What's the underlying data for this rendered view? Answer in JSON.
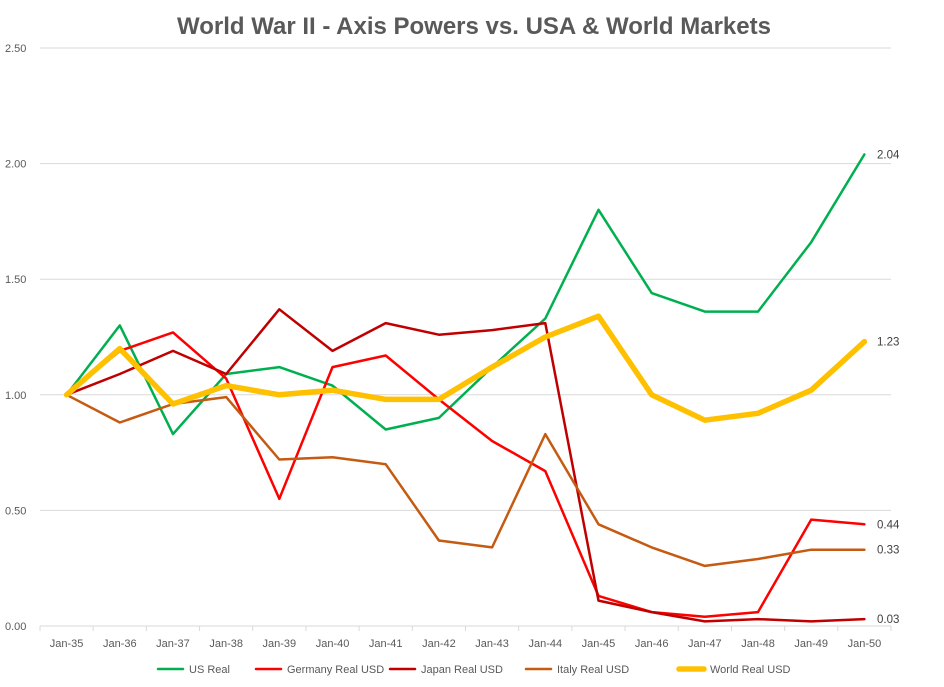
{
  "chart_data": {
    "type": "line",
    "title": "World War II - Axis Powers vs. USA & World Markets",
    "xlabel": "",
    "ylabel": "",
    "ylim": [
      0,
      2.5
    ],
    "yticks": [
      "0.00",
      "0.50",
      "1.00",
      "1.50",
      "2.00",
      "2.50"
    ],
    "grid": true,
    "legend_position": "bottom",
    "categories": [
      "Jan-35",
      "Jan-36",
      "Jan-37",
      "Jan-38",
      "Jan-39",
      "Jan-40",
      "Jan-41",
      "Jan-42",
      "Jan-43",
      "Jan-44",
      "Jan-45",
      "Jan-46",
      "Jan-47",
      "Jan-48",
      "Jan-49",
      "Jan-50"
    ],
    "series": [
      {
        "name": "US Real",
        "color": "#00B050",
        "width": 2.5,
        "end_label": "2.04",
        "values": [
          1.0,
          1.3,
          0.83,
          1.09,
          1.12,
          1.04,
          0.85,
          0.9,
          1.12,
          1.33,
          1.8,
          1.44,
          1.36,
          1.36,
          1.66,
          2.04
        ]
      },
      {
        "name": "Germany Real USD",
        "color": "#FF0000",
        "width": 2.5,
        "end_label": "0.44",
        "values": [
          1.0,
          1.19,
          1.27,
          1.07,
          0.55,
          1.12,
          1.17,
          0.98,
          0.8,
          0.67,
          0.13,
          0.06,
          0.04,
          0.06,
          0.46,
          0.44
        ]
      },
      {
        "name": "Japan Real USD",
        "color": "#C00000",
        "width": 2.5,
        "end_label": "0.03",
        "values": [
          1.0,
          1.09,
          1.19,
          1.09,
          1.37,
          1.19,
          1.31,
          1.26,
          1.28,
          1.31,
          0.11,
          0.06,
          0.02,
          0.03,
          0.02,
          0.03
        ]
      },
      {
        "name": "Italy Real USD",
        "color": "#C55A11",
        "width": 2.5,
        "end_label": "0.33",
        "values": [
          1.0,
          0.88,
          0.96,
          0.99,
          0.72,
          0.73,
          0.7,
          0.37,
          0.34,
          0.83,
          0.44,
          0.34,
          0.26,
          0.29,
          0.33,
          0.33
        ]
      },
      {
        "name": "World Real USD",
        "color": "#FFC000",
        "width": 5.5,
        "end_label": "1.23",
        "values": [
          1.0,
          1.2,
          0.96,
          1.04,
          1.0,
          1.02,
          0.98,
          0.98,
          1.12,
          1.25,
          1.34,
          1.0,
          0.89,
          0.92,
          1.02,
          1.23
        ]
      }
    ]
  }
}
